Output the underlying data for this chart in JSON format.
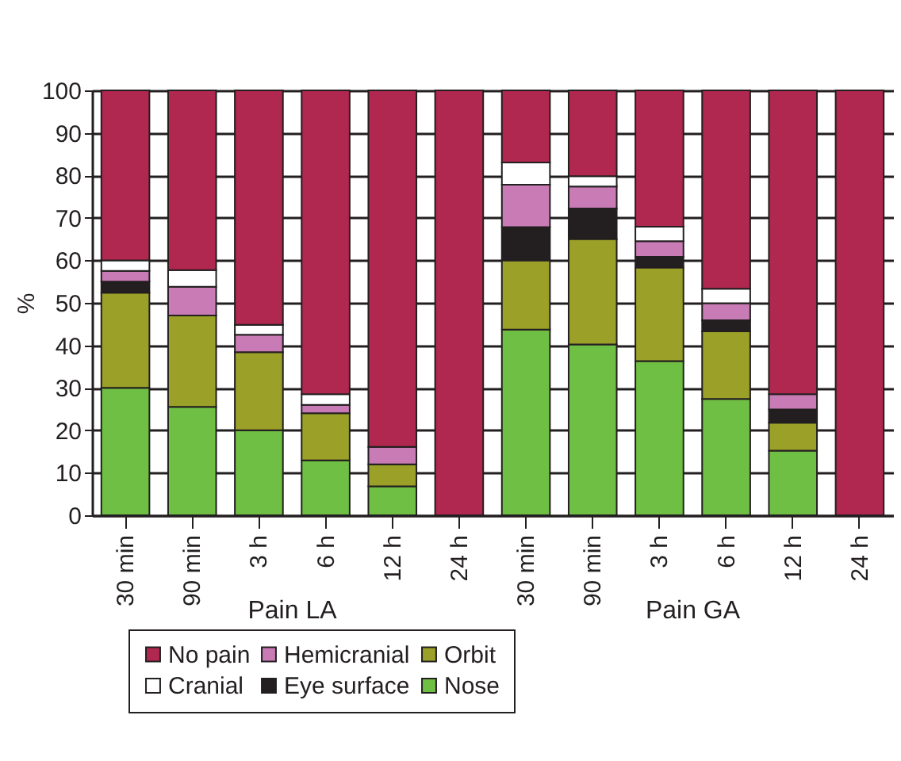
{
  "chart_data": {
    "type": "bar",
    "stacked": true,
    "ylabel": "%",
    "ylim": [
      0,
      100
    ],
    "yticks": [
      0,
      10,
      20,
      30,
      40,
      50,
      60,
      70,
      80,
      90,
      100
    ],
    "grid": "y",
    "legend": "bottom",
    "categories": [
      "30 min",
      "90 min",
      "3 h",
      "6 h",
      "12 h",
      "24 h",
      "30 min",
      "90 min",
      "3 h",
      "6 h",
      "12 h",
      "24 h"
    ],
    "annotations": [
      "Pain LA",
      "Pain GA"
    ],
    "series": [
      {
        "name": "Nose",
        "color": "#6fbf44",
        "values": [
          30,
          25.5,
          20,
          12.9,
          6.8,
          null,
          43.7,
          40.2,
          36.3,
          27.4,
          15.2,
          null
        ]
      },
      {
        "name": "Orbit",
        "color": "#9aa028",
        "values": [
          22.4,
          21.5,
          18.4,
          11.1,
          5.2,
          null,
          16.3,
          24.8,
          22,
          15.9,
          6.6,
          null
        ]
      },
      {
        "name": "Eye surface",
        "color": "#231f20",
        "values": [
          2.6,
          null,
          null,
          null,
          null,
          null,
          7.8,
          7.2,
          2.5,
          2.6,
          3.1,
          null
        ]
      },
      {
        "name": "Hemicranial",
        "color": "#c97bb5",
        "values": [
          2.5,
          6.8,
          4.1,
          2,
          4.1,
          null,
          10,
          5.2,
          3.7,
          4,
          3.6,
          null
        ]
      },
      {
        "name": "Cranial",
        "color": "#ffffff",
        "values": [
          2.5,
          3.9,
          2.3,
          2.5,
          null,
          null,
          5.2,
          2.4,
          3.4,
          3.4,
          null,
          null
        ]
      },
      {
        "name": "No pain",
        "color": "#b0274f",
        "values": [
          40,
          42.3,
          55.2,
          71.5,
          83.9,
          100,
          17,
          20.2,
          32.1,
          46.7,
          71.5,
          100
        ]
      }
    ]
  }
}
